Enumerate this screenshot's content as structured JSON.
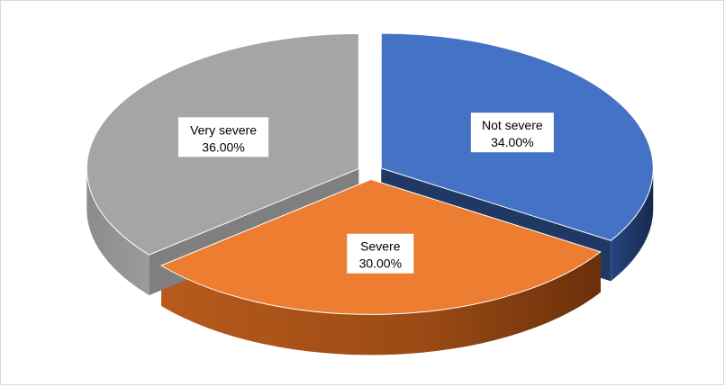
{
  "chart_data": {
    "type": "pie",
    "title": "",
    "style": "3d-exploded",
    "slices": [
      {
        "name": "Not severe",
        "value": 34.0,
        "label": "34.00%",
        "color": "#4472c4",
        "side_color": "#1f3864"
      },
      {
        "name": "Severe",
        "value": 30.0,
        "label": "30.00%",
        "color": "#ed7d31",
        "side_color": "#843c0c"
      },
      {
        "name": "Very severe",
        "value": 36.0,
        "label": "36.00%",
        "color": "#a5a5a5",
        "side_color": "#7f7f7f"
      }
    ],
    "legend": "none"
  }
}
